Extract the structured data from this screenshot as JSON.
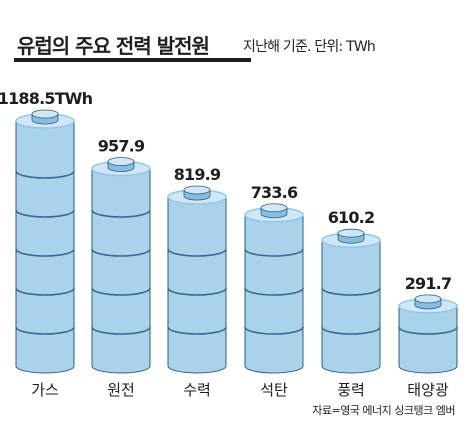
{
  "header": {
    "title": "유럽의 주요 전력 발전원",
    "subtitle": "지난해 기준. 단위: TWh"
  },
  "footer": {
    "source": "자료=영국 에너지 싱크탱크 엠버"
  },
  "colors": {
    "body": "#a9d2eb",
    "top": "#cfe7f6",
    "top_ring": "#95c6e6",
    "cap": "#86bde0",
    "outline": "#2f5f7e",
    "band": "#3d6a8a",
    "text": "#1e1e1e"
  },
  "chart_data": {
    "type": "bar",
    "title": "유럽의 주요 전력 발전원",
    "subtitle": "지난해 기준. 단위: TWh",
    "categories": [
      "가스",
      "원전",
      "수력",
      "석탄",
      "풍력",
      "태양광"
    ],
    "values": [
      1188.5,
      957.9,
      819.9,
      733.6,
      610.2,
      291.7
    ],
    "value_labels": [
      "1188.5TWh",
      "957.9",
      "819.9",
      "733.6",
      "610.2",
      "291.7"
    ],
    "unit": "TWh",
    "ylim": [
      0,
      1188.5
    ],
    "grid": false,
    "legend": "none"
  }
}
